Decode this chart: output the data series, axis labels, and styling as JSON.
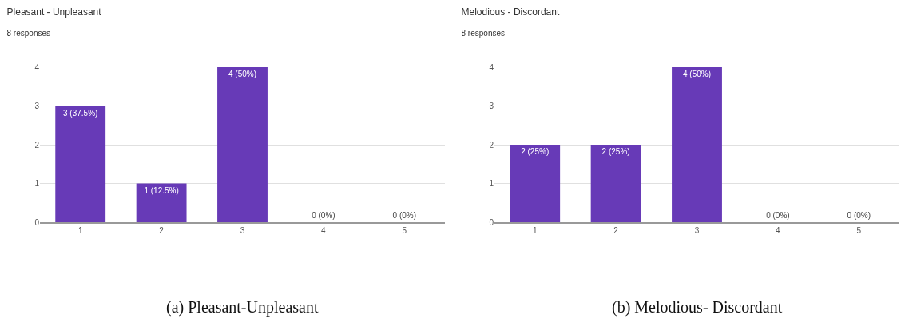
{
  "chart_data": [
    {
      "type": "bar",
      "title": "Pleasant - Unpleasant",
      "subtitle": "8 responses",
      "categories": [
        "1",
        "2",
        "3",
        "4",
        "5"
      ],
      "values": [
        3,
        1,
        4,
        0,
        0
      ],
      "value_labels": [
        "3 (37.5%)",
        "1 (12.5%)",
        "4 (50%)",
        "0 (0%)",
        "0 (0%)"
      ],
      "color": "#673ab7",
      "ylim": [
        0,
        4
      ],
      "yticks": [
        0,
        1,
        2,
        3,
        4
      ],
      "grid": "y",
      "annotations": [
        "(a) Pleasant-Unpleasant"
      ]
    },
    {
      "type": "bar",
      "title": "Melodious - Discordant",
      "subtitle": "8 responses",
      "categories": [
        "1",
        "2",
        "3",
        "4",
        "5"
      ],
      "values": [
        2,
        2,
        4,
        0,
        0
      ],
      "value_labels": [
        "2 (25%)",
        "2 (25%)",
        "4 (50%)",
        "0 (0%)",
        "0 (0%)"
      ],
      "color": "#673ab7",
      "ylim": [
        0,
        4
      ],
      "yticks": [
        0,
        1,
        2,
        3,
        4
      ],
      "grid": "y",
      "annotations": [
        "(b) Melodious- Discordant"
      ]
    }
  ]
}
